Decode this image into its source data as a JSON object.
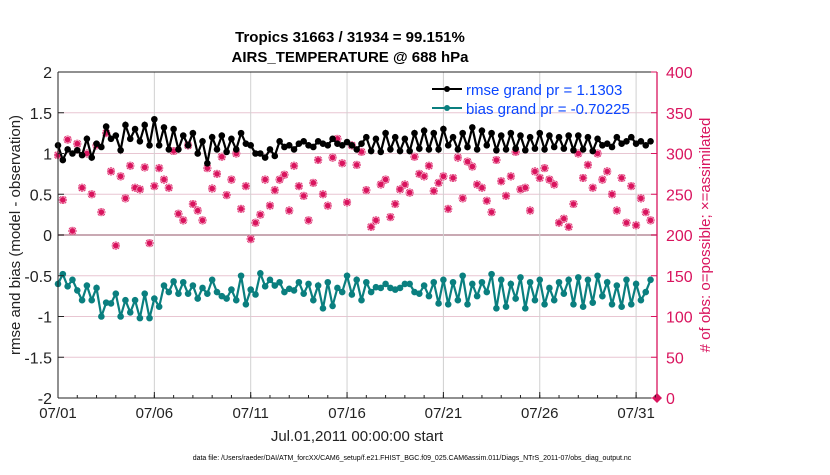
{
  "chart_data": {
    "type": "line",
    "title": "Tropics 31663 / 31934 = 99.151%",
    "subtitle": "AIRS_TEMPERATURE @ 688 hPa",
    "xlabel": "Jul.01,2011 00:00:00 start",
    "ylabel": "rmse and bias (model - observation)",
    "y2label": "# of obs: o=possible; ×=assimilated",
    "footnote": "data file: /Users/raeder/DAI/ATM_forcXX/CAM6_setup/f.e21.FHIST_BGC.f09_025.CAM6assim.011/Diags_NTrS_2011-07/obs_diag_output.nc",
    "x_tick_labels": [
      "07/01",
      "07/06",
      "07/11",
      "07/16",
      "07/21",
      "07/26",
      "07/31"
    ],
    "x_tick_days": [
      1,
      6,
      11,
      16,
      21,
      26,
      31
    ],
    "xlim": [
      "07/01 00:00",
      "08/01 02:00"
    ],
    "ylim": [
      -2,
      2
    ],
    "y_ticks": [
      -2,
      -1.5,
      -1,
      -0.5,
      0,
      0.5,
      1,
      1.5,
      2
    ],
    "y2lim": [
      0,
      400
    ],
    "y2_ticks": [
      0,
      50,
      100,
      150,
      200,
      250,
      300,
      350,
      400
    ],
    "grid": true,
    "legend_placement": "top-right",
    "colors": {
      "rmse": "#000000",
      "bias": "#0a7f7f",
      "obs": "#d9145e",
      "legend_text": "#0a46ff",
      "grid": "#e8c6d2",
      "vgrid": "#d0d0d0"
    },
    "times_per_day": [
      "00:00",
      "06:00",
      "12:00",
      "18:00"
    ],
    "series": [
      {
        "name": "rmse grand pr = 1.1303",
        "axis": "left",
        "values": [
          1.1,
          0.92,
          1.05,
          1.0,
          1.04,
          0.98,
          1.18,
          0.95,
          1.12,
          1.08,
          1.33,
          1.18,
          1.22,
          1.04,
          1.35,
          1.18,
          1.3,
          1.15,
          1.35,
          1.1,
          1.42,
          1.1,
          1.32,
          1.05,
          1.3,
          1.05,
          1.22,
          1.1,
          1.25,
          1.0,
          1.15,
          0.88,
          1.2,
          1.05,
          1.22,
          1.02,
          1.18,
          1.05,
          1.25,
          1.12,
          1.1,
          1.0,
          1.0,
          0.95,
          1.05,
          0.97,
          1.15,
          1.08,
          1.1,
          1.05,
          1.12,
          1.15,
          1.1,
          1.08,
          1.15,
          1.12,
          1.1,
          1.18,
          1.12,
          1.1,
          1.14,
          1.1,
          1.05,
          1.12,
          1.2,
          1.03,
          1.18,
          1.02,
          1.25,
          1.05,
          1.2,
          1.03,
          1.18,
          1.03,
          1.25,
          1.06,
          1.28,
          1.05,
          1.25,
          1.05,
          1.3,
          1.1,
          1.2,
          1.05,
          1.25,
          1.08,
          1.32,
          1.05,
          1.28,
          1.1,
          1.25,
          1.04,
          1.22,
          1.05,
          1.25,
          1.06,
          1.22,
          1.04,
          1.2,
          1.06,
          1.25,
          1.05,
          1.22,
          1.08,
          1.2,
          1.06,
          1.22,
          1.04,
          1.22,
          1.05,
          1.2,
          1.03,
          1.18,
          1.1,
          1.12,
          1.08,
          1.2,
          1.12,
          1.15,
          1.2,
          1.12,
          1.15,
          1.1,
          1.15
        ]
      },
      {
        "name": "bias grand pr = -0.70225",
        "axis": "left",
        "values": [
          -0.6,
          -0.48,
          -0.63,
          -0.55,
          -0.68,
          -0.8,
          -0.62,
          -0.8,
          -0.65,
          -1.0,
          -0.83,
          -0.84,
          -0.72,
          -1.0,
          -0.8,
          -0.95,
          -0.8,
          -1.02,
          -0.72,
          -1.02,
          -0.78,
          -0.88,
          -0.62,
          -0.7,
          -0.57,
          -0.72,
          -0.58,
          -0.72,
          -0.62,
          -0.78,
          -0.65,
          -0.72,
          -0.55,
          -0.7,
          -0.75,
          -0.78,
          -0.67,
          -0.8,
          -0.5,
          -0.85,
          -0.67,
          -0.73,
          -0.47,
          -0.63,
          -0.55,
          -0.62,
          -0.58,
          -0.7,
          -0.66,
          -0.68,
          -0.58,
          -0.72,
          -0.6,
          -0.8,
          -0.62,
          -0.9,
          -0.58,
          -0.87,
          -0.65,
          -0.7,
          -0.5,
          -0.73,
          -0.55,
          -0.8,
          -0.58,
          -0.7,
          -0.64,
          -0.65,
          -0.6,
          -0.65,
          -0.67,
          -0.65,
          -0.6,
          -0.6,
          -0.7,
          -0.72,
          -0.62,
          -0.75,
          -0.58,
          -0.84,
          -0.55,
          -0.85,
          -0.58,
          -0.8,
          -0.5,
          -0.85,
          -0.6,
          -0.75,
          -0.58,
          -0.7,
          -0.48,
          -0.9,
          -0.55,
          -0.88,
          -0.6,
          -0.78,
          -0.52,
          -0.9,
          -0.58,
          -0.8,
          -0.55,
          -0.85,
          -0.65,
          -0.8,
          -0.58,
          -0.72,
          -0.55,
          -0.85,
          -0.52,
          -0.88,
          -0.55,
          -0.83,
          -0.5,
          -0.75,
          -0.58,
          -0.85,
          -0.62,
          -0.88,
          -0.55,
          -0.85,
          -0.6,
          -0.8,
          -0.7,
          -0.55
        ]
      },
      {
        "axis": "right",
        "marker": "o and ×",
        "values": [
          298,
          243,
          317,
          205,
          312,
          258,
          300,
          250,
          310,
          228,
          325,
          278,
          187,
          272,
          245,
          285,
          258,
          256,
          283,
          190,
          260,
          282,
          268,
          258,
          303,
          226,
          218,
          310,
          238,
          230,
          218,
          282,
          257,
          275,
          296,
          249,
          268,
          300,
          232,
          260,
          195,
          215,
          225,
          268,
          236,
          255,
          268,
          274,
          230,
          285,
          260,
          248,
          218,
          264,
          292,
          250,
          236,
          295,
          318,
          288,
          240,
          310,
          286,
          302,
          255,
          210,
          218,
          262,
          268,
          222,
          238,
          256,
          262,
          252,
          296,
          275,
          272,
          285,
          254,
          264,
          272,
          232,
          270,
          295,
          245,
          290,
          284,
          262,
          258,
          242,
          228,
          292,
          266,
          248,
          272,
          302,
          256,
          258,
          230,
          278,
          270,
          282,
          268,
          262,
          215,
          220,
          210,
          238,
          300,
          270,
          286,
          258,
          300,
          268,
          278,
          250,
          230,
          270,
          215,
          260,
          212,
          245,
          228,
          218
        ],
        "end_point": {
          "x": "08/01 02:00",
          "value": 0
        }
      }
    ]
  }
}
